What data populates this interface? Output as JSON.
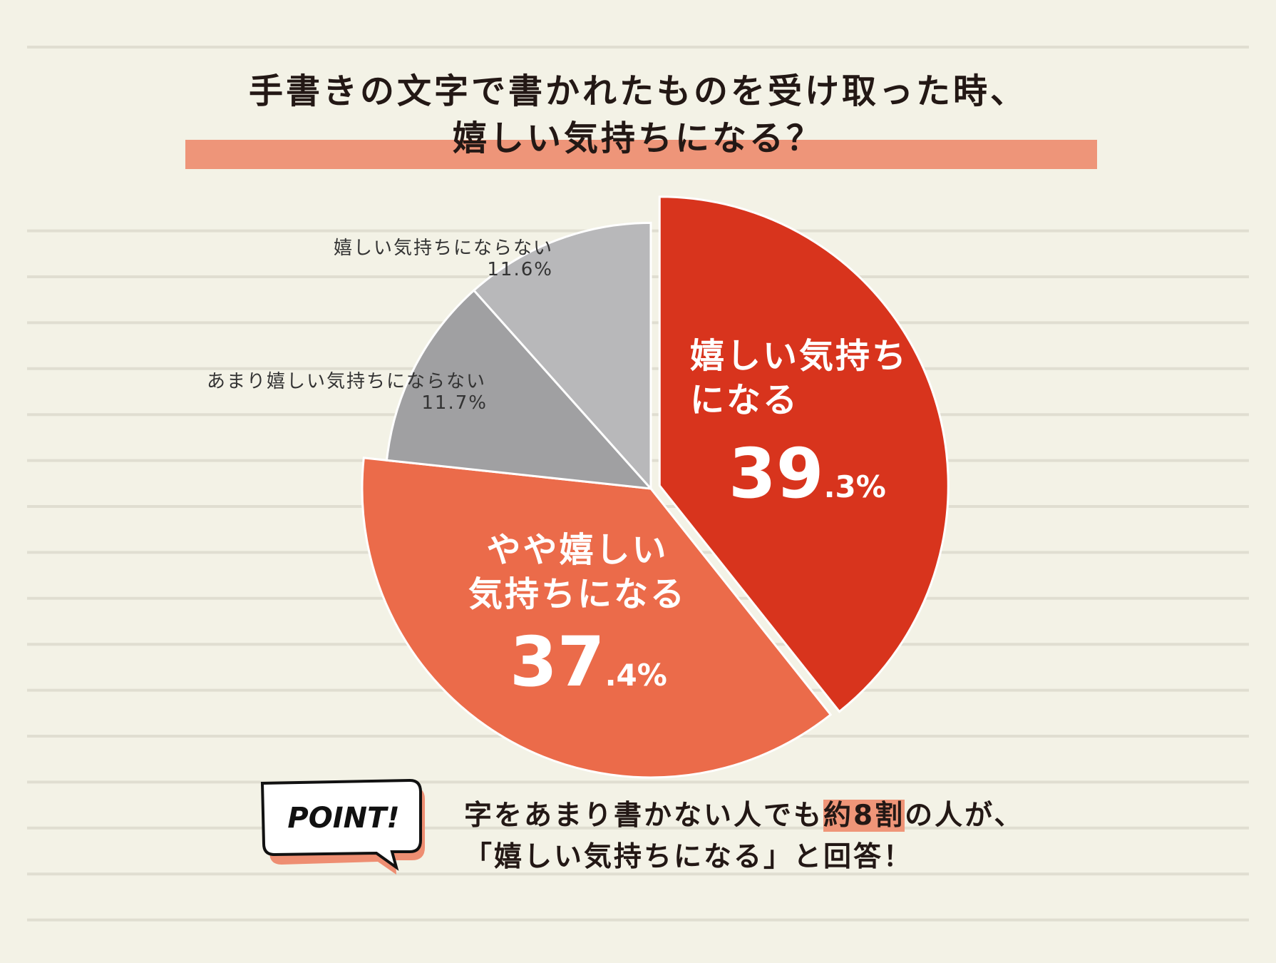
{
  "chart_data": {
    "type": "pie",
    "title": "手書きの文字で書かれたものを受け取った時、\n嬉しい気持ちになる？",
    "categories": [
      "嬉しい気持ち\nになる",
      "やや嬉しい\n気持ちになる",
      "あまり嬉しい気持ちにならない",
      "嬉しい気持ちにならない"
    ],
    "values": [
      39.3,
      37.4,
      11.7,
      11.6
    ],
    "value_labels": [
      "39.3%",
      "37.4%",
      "11.7%",
      "11.6%"
    ],
    "colors": [
      "#d8341d",
      "#eb6b4a",
      "#a0a0a2",
      "#b8b8ba"
    ]
  },
  "point": {
    "badge": "POINT!",
    "lines": [
      [
        "字をあまり書かない人でも",
        "約8割",
        "の人が、"
      ],
      [
        "「嬉しい気持ちになる」と回答！"
      ]
    ]
  }
}
